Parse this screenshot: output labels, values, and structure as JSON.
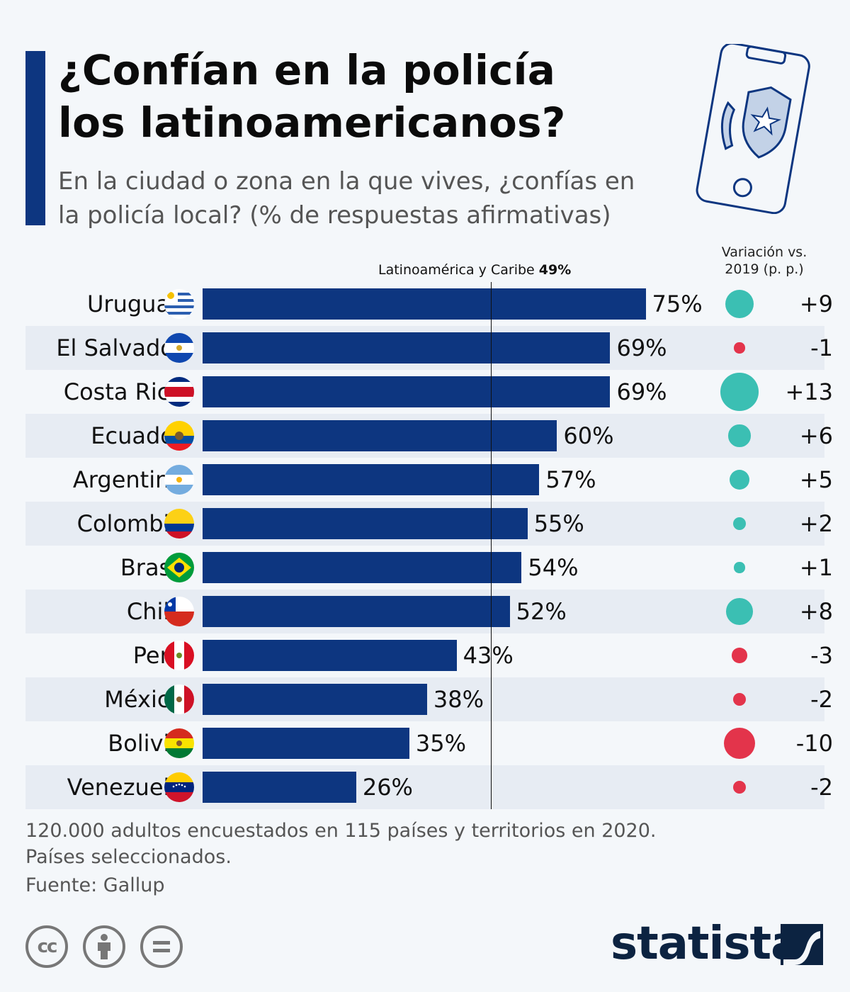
{
  "header": {
    "title_line1": "¿Confían en la policía",
    "title_line2": "los latinoamericanos?",
    "subtitle_line1": "En la ciudad o zona en la que vives, ¿confías en",
    "subtitle_line2": "la policía local? (% de respuestas afirmativas)"
  },
  "variation_header": {
    "line1": "Variación vs.",
    "line2": "2019 (p. p.)"
  },
  "average": {
    "label": "Latinoamérica y Caribe",
    "value_label": "49%"
  },
  "colors": {
    "bar": "#0d3680",
    "positive": "#3bbfb3",
    "negative": "#e3344b",
    "accent": "#0d3680"
  },
  "chart_data": {
    "type": "bar",
    "orientation": "horizontal",
    "title": "¿Confían en la policía los latinoamericanos?",
    "subtitle": "En la ciudad o zona en la que vives, ¿confías en la policía local? (% de respuestas afirmativas)",
    "xlim": [
      0,
      100
    ],
    "reference_line": {
      "label": "Latinoamérica y Caribe",
      "value": 49
    },
    "categories": [
      "Uruguay",
      "El Salvador",
      "Costa Rica",
      "Ecuador",
      "Argentina",
      "Colombia",
      "Brasil",
      "Chile",
      "Perú",
      "México",
      "Bolivia",
      "Venezuela"
    ],
    "values": [
      75,
      69,
      69,
      60,
      57,
      55,
      54,
      52,
      43,
      38,
      35,
      26
    ],
    "value_labels": [
      "75%",
      "69%",
      "69%",
      "60%",
      "57%",
      "55%",
      "54%",
      "52%",
      "43%",
      "38%",
      "35%",
      "26%"
    ],
    "change_header": "Variación vs. 2019 (p. p.)",
    "change": [
      9,
      -1,
      13,
      6,
      5,
      2,
      1,
      8,
      -3,
      -2,
      -10,
      -2
    ],
    "change_labels": [
      "+9",
      "-1",
      "+13",
      "+6",
      "+5",
      "+2",
      "+1",
      "+8",
      "-3",
      "-2",
      "-10",
      "-2"
    ],
    "flags": [
      "uruguay-flag",
      "el-salvador-flag",
      "costa-rica-flag",
      "ecuador-flag",
      "argentina-flag",
      "colombia-flag",
      "brasil-flag",
      "chile-flag",
      "peru-flag",
      "mexico-flag",
      "bolivia-flag",
      "venezuela-flag"
    ]
  },
  "footer": {
    "note_line1": "120.000 adultos encuestados en 115 países y territorios en 2020.",
    "note_line2": "Países seleccionados.",
    "source": "Fuente: Gallup",
    "license_icons": [
      "cc-icon",
      "attribution-icon",
      "no-derivatives-icon"
    ],
    "logo": "statista"
  }
}
